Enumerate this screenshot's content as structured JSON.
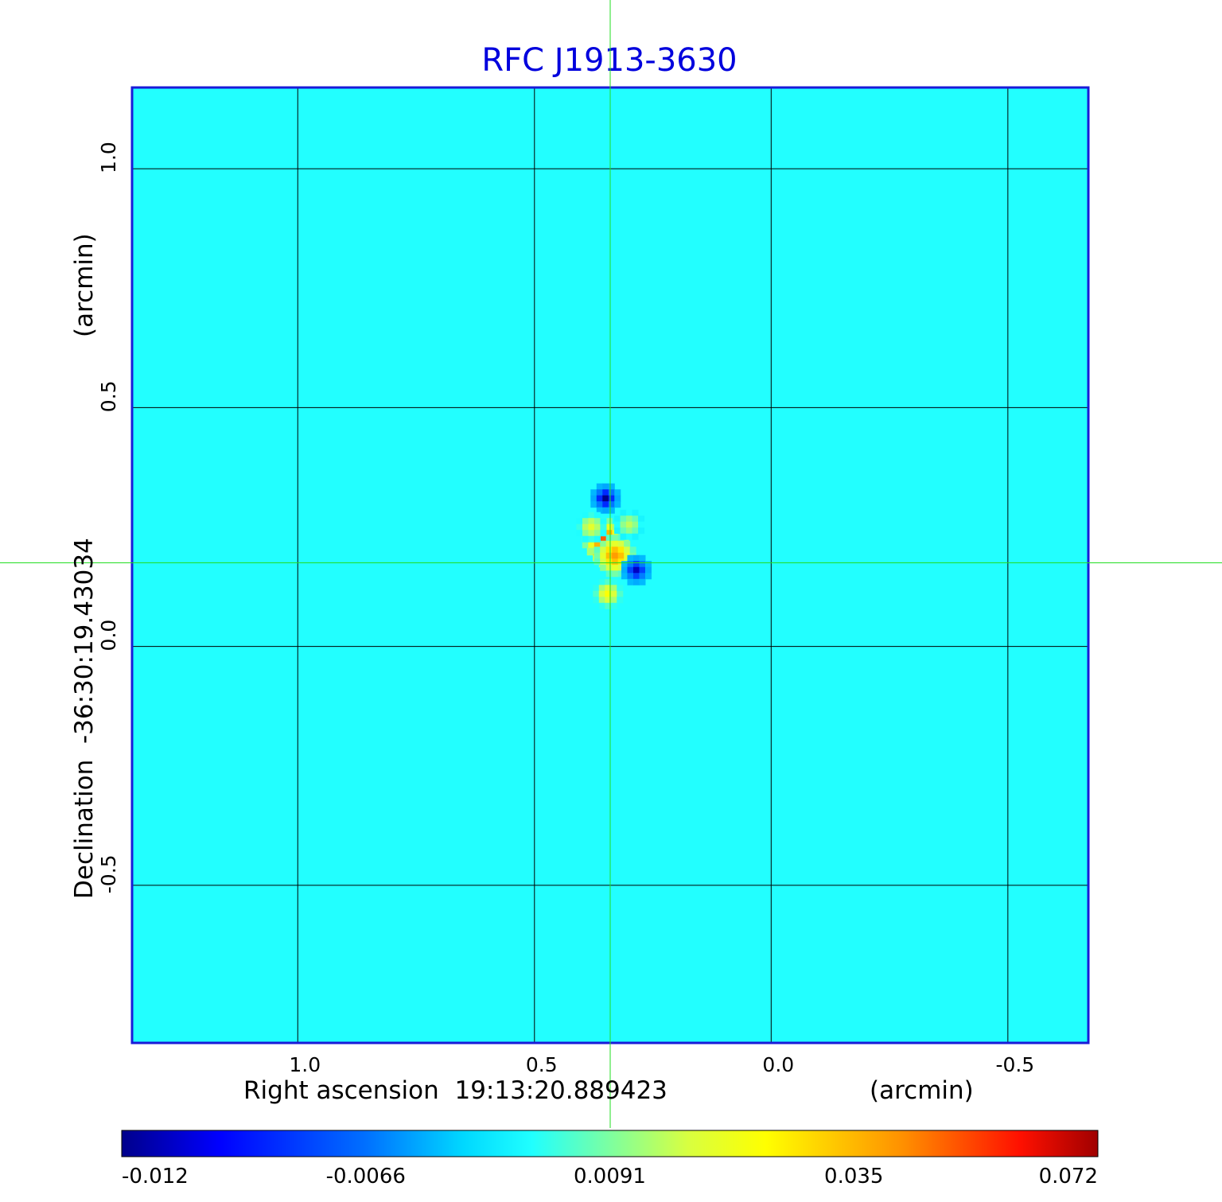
{
  "chart_data": {
    "type": "heatmap",
    "title": "RFC J1913-3630",
    "xlabel": "Right ascension  19:13:20.889423",
    "xunit": "(arcmin)",
    "ylabel": "Declination  -36:30:19.43034",
    "yunit": "(arcmin)",
    "xlim": [
      1.35,
      -0.67
    ],
    "ylim": [
      -0.83,
      1.17
    ],
    "x_ticks": [
      {
        "value": 1.0,
        "label": "1.0"
      },
      {
        "value": 0.5,
        "label": "0.5"
      },
      {
        "value": 0.0,
        "label": "0.0"
      },
      {
        "value": -0.5,
        "label": "-0.5"
      }
    ],
    "y_ticks": [
      {
        "value": 1.0,
        "label": "1.0"
      },
      {
        "value": 0.5,
        "label": "0.5"
      },
      {
        "value": 0.0,
        "label": "0.0"
      },
      {
        "value": -0.5,
        "label": "-0.5"
      }
    ],
    "grid": true,
    "crosshair": {
      "x": 0.34,
      "y": 0.175
    },
    "colormap": "jet",
    "colorbar": {
      "position": "bottom",
      "ticks": [
        {
          "value": -0.012,
          "label": "-0.012"
        },
        {
          "value": -0.0066,
          "label": "-0.0066"
        },
        {
          "value": 0.0091,
          "label": "0.0091"
        },
        {
          "value": 0.035,
          "label": "0.035"
        },
        {
          "value": 0.072,
          "label": "0.072"
        }
      ]
    },
    "background_value": 0.0,
    "features": [
      {
        "x": 0.345,
        "y": 0.21,
        "value": 0.072
      },
      {
        "x": 0.355,
        "y": 0.225,
        "value": 0.05
      },
      {
        "x": 0.33,
        "y": 0.19,
        "value": 0.04
      },
      {
        "x": 0.35,
        "y": 0.31,
        "value": -0.012
      },
      {
        "x": 0.285,
        "y": 0.16,
        "value": -0.011
      },
      {
        "x": 0.345,
        "y": 0.11,
        "value": 0.025
      },
      {
        "x": 0.38,
        "y": 0.25,
        "value": 0.02
      },
      {
        "x": 0.3,
        "y": 0.255,
        "value": 0.015
      }
    ]
  }
}
